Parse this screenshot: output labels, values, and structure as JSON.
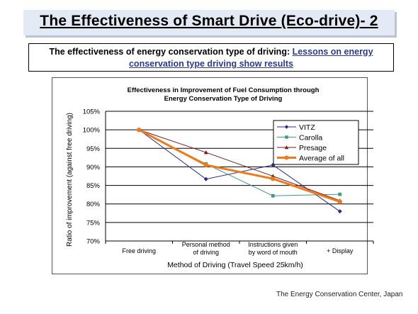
{
  "header": {
    "title": "The Effectiveness of Smart Drive (Eco-drive)- 2"
  },
  "subtitle": {
    "text_plain": "The effectiveness of energy conservation type of driving: ",
    "text_link": "Lessons on energy conservation type driving show results"
  },
  "footer": {
    "credit": "The Energy Conservation Center, Japan"
  },
  "colors": {
    "title_bg": "#e4eaf5",
    "link": "#2b3a8f",
    "vitz": "#2a2a8a",
    "carolla": "#3f9a86",
    "presage": "#7a1a1a",
    "average": "#f07a18"
  },
  "chart_data": {
    "type": "line",
    "title": "Effectiveness in Improvement of Fuel Consumption through Energy Conservation Type of Driving",
    "title_lines": [
      "Effectiveness in Improvement of Fuel Consumption through",
      "Energy Conservation Type of Driving"
    ],
    "xlabel": "Method of Driving (Travel Speed 25km/h)",
    "ylabel": "Ratio of improvement (against free driving)",
    "categories": [
      [
        "Free driving"
      ],
      [
        "Personal method",
        "of driving"
      ],
      [
        "Instructions given",
        "by word of mouth"
      ],
      [
        "+ Display"
      ]
    ],
    "ylim": [
      70,
      105
    ],
    "yticks": [
      70,
      75,
      80,
      85,
      90,
      95,
      100,
      105
    ],
    "ytick_labels": [
      "70%",
      "75%",
      "80%",
      "85%",
      "90%",
      "95%",
      "100%",
      "105%"
    ],
    "grid": true,
    "legend_position": "top-right",
    "series": [
      {
        "name": "VITZ",
        "values": [
          100,
          86.7,
          90.5,
          78
        ],
        "color": "#2a2a8a",
        "marker": "diamond"
      },
      {
        "name": "Carolla",
        "values": [
          100,
          90.8,
          82.2,
          82.6
        ],
        "color": "#3f9a86",
        "marker": "square"
      },
      {
        "name": "Presage",
        "values": [
          100,
          93.9,
          87.5,
          80.9
        ],
        "color": "#7a1a1a",
        "marker": "triangle"
      },
      {
        "name": "Average of all",
        "values": [
          100,
          90.5,
          86.8,
          80.6
        ],
        "color": "#f07a18",
        "marker": "circle"
      }
    ]
  }
}
